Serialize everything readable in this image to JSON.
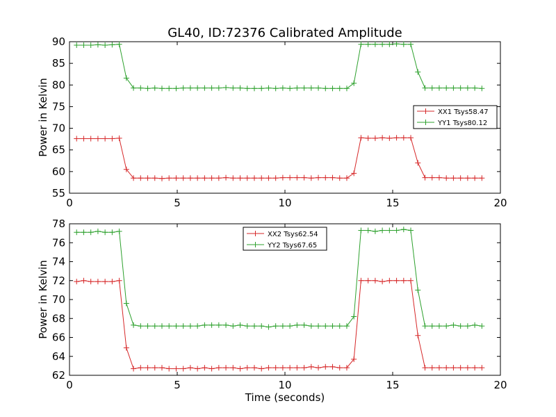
{
  "chart_data": [
    {
      "type": "line",
      "title": "GL40, ID:72376 Calibrated Amplitude",
      "xlabel": "",
      "ylabel": "Power in Kelvin",
      "xlim": [
        0,
        20
      ],
      "ylim": [
        55,
        90
      ],
      "xticks": [
        "0",
        "5",
        "10",
        "15",
        "20"
      ],
      "yticks": [
        "55",
        "60",
        "65",
        "70",
        "75",
        "80",
        "85",
        "90"
      ],
      "legend_position": "center-right",
      "x": [
        0.33,
        0.66,
        0.99,
        1.32,
        1.65,
        1.98,
        2.31,
        2.64,
        2.97,
        3.3,
        3.63,
        3.96,
        4.29,
        4.62,
        4.95,
        5.28,
        5.61,
        5.94,
        6.27,
        6.6,
        6.93,
        7.26,
        7.59,
        7.92,
        8.25,
        8.58,
        8.91,
        9.24,
        9.57,
        9.9,
        10.23,
        10.56,
        10.89,
        11.22,
        11.55,
        11.88,
        12.21,
        12.54,
        12.87,
        13.2,
        13.53,
        13.86,
        14.19,
        14.52,
        14.85,
        15.18,
        15.51,
        15.84,
        16.17,
        16.5,
        16.83,
        17.16,
        17.49,
        17.82,
        18.15,
        18.48,
        18.81,
        19.14
      ],
      "series": [
        {
          "name": "XX1 Tsys58.47",
          "color": "#d62728",
          "values": [
            67.6,
            67.6,
            67.6,
            67.6,
            67.6,
            67.6,
            67.7,
            60.5,
            58.5,
            58.5,
            58.5,
            58.5,
            58.4,
            58.5,
            58.5,
            58.5,
            58.5,
            58.5,
            58.5,
            58.5,
            58.5,
            58.6,
            58.5,
            58.5,
            58.5,
            58.5,
            58.5,
            58.5,
            58.5,
            58.6,
            58.6,
            58.6,
            58.6,
            58.5,
            58.6,
            58.6,
            58.6,
            58.5,
            58.5,
            59.6,
            67.8,
            67.7,
            67.7,
            67.8,
            67.7,
            67.8,
            67.8,
            67.8,
            62.0,
            58.6,
            58.6,
            58.6,
            58.5,
            58.5,
            58.5,
            58.5,
            58.5,
            58.5
          ]
        },
        {
          "name": "YY1 Tsys80.12",
          "color": "#2ca02c",
          "values": [
            89.2,
            89.2,
            89.2,
            89.3,
            89.2,
            89.3,
            89.4,
            81.6,
            79.3,
            79.3,
            79.2,
            79.3,
            79.2,
            79.2,
            79.2,
            79.3,
            79.3,
            79.3,
            79.3,
            79.3,
            79.3,
            79.4,
            79.3,
            79.3,
            79.2,
            79.2,
            79.2,
            79.3,
            79.2,
            79.3,
            79.2,
            79.3,
            79.3,
            79.3,
            79.3,
            79.2,
            79.2,
            79.2,
            79.2,
            80.4,
            89.4,
            89.4,
            89.4,
            89.4,
            89.4,
            89.5,
            89.4,
            89.4,
            83.0,
            79.3,
            79.3,
            79.3,
            79.3,
            79.3,
            79.3,
            79.3,
            79.3,
            79.2
          ]
        }
      ]
    },
    {
      "type": "line",
      "title": "",
      "xlabel": "Time (seconds)",
      "ylabel": "Power in Kelvin",
      "xlim": [
        0,
        20
      ],
      "ylim": [
        62,
        78
      ],
      "xticks": [
        "0",
        "5",
        "10",
        "15",
        "20"
      ],
      "yticks": [
        "62",
        "64",
        "66",
        "68",
        "70",
        "72",
        "74",
        "76",
        "78"
      ],
      "legend_position": "upper-center",
      "x": [
        0.33,
        0.66,
        0.99,
        1.32,
        1.65,
        1.98,
        2.31,
        2.64,
        2.97,
        3.3,
        3.63,
        3.96,
        4.29,
        4.62,
        4.95,
        5.28,
        5.61,
        5.94,
        6.27,
        6.6,
        6.93,
        7.26,
        7.59,
        7.92,
        8.25,
        8.58,
        8.91,
        9.24,
        9.57,
        9.9,
        10.23,
        10.56,
        10.89,
        11.22,
        11.55,
        11.88,
        12.21,
        12.54,
        12.87,
        13.2,
        13.53,
        13.86,
        14.19,
        14.52,
        14.85,
        15.18,
        15.51,
        15.84,
        16.17,
        16.5,
        16.83,
        17.16,
        17.49,
        17.82,
        18.15,
        18.48,
        18.81,
        19.14
      ],
      "series": [
        {
          "name": "XX2 Tsys62.54",
          "color": "#d62728",
          "values": [
            71.9,
            72.0,
            71.9,
            71.9,
            71.9,
            71.9,
            72.0,
            64.9,
            62.7,
            62.8,
            62.8,
            62.8,
            62.8,
            62.7,
            62.7,
            62.7,
            62.8,
            62.7,
            62.8,
            62.7,
            62.8,
            62.8,
            62.8,
            62.7,
            62.8,
            62.8,
            62.7,
            62.8,
            62.8,
            62.8,
            62.8,
            62.8,
            62.8,
            62.9,
            62.8,
            62.9,
            62.9,
            62.8,
            62.8,
            63.7,
            72.0,
            72.0,
            72.0,
            71.9,
            72.0,
            72.0,
            72.0,
            72.0,
            66.2,
            62.8,
            62.8,
            62.8,
            62.8,
            62.8,
            62.8,
            62.8,
            62.8,
            62.8
          ]
        },
        {
          "name": "YY2 Tsys67.65",
          "color": "#2ca02c",
          "values": [
            77.1,
            77.1,
            77.1,
            77.2,
            77.1,
            77.1,
            77.2,
            69.6,
            67.3,
            67.2,
            67.2,
            67.2,
            67.2,
            67.2,
            67.2,
            67.2,
            67.2,
            67.2,
            67.3,
            67.3,
            67.3,
            67.3,
            67.2,
            67.3,
            67.2,
            67.2,
            67.2,
            67.1,
            67.2,
            67.2,
            67.2,
            67.3,
            67.3,
            67.2,
            67.2,
            67.2,
            67.2,
            67.2,
            67.2,
            68.2,
            77.3,
            77.3,
            77.2,
            77.3,
            77.3,
            77.3,
            77.4,
            77.3,
            71.0,
            67.2,
            67.2,
            67.2,
            67.2,
            67.3,
            67.2,
            67.2,
            67.3,
            67.2
          ]
        }
      ]
    }
  ]
}
